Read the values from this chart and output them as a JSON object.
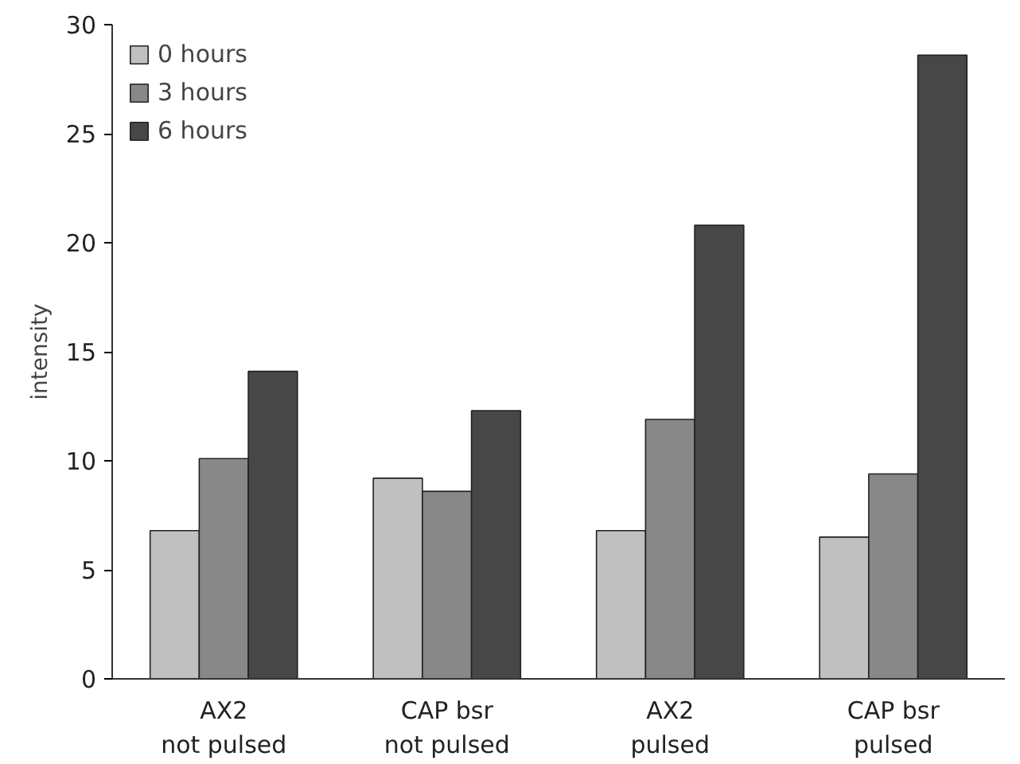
{
  "chart_data": {
    "type": "bar",
    "ylabel": "intensity",
    "categories": [
      "AX2\nnot pulsed",
      "CAP bsr\nnot pulsed",
      "AX2\npulsed",
      "CAP bsr\npulsed"
    ],
    "series": [
      {
        "name": "0 hours",
        "color": "#c0c0c0",
        "values": [
          6.8,
          9.2,
          6.8,
          6.5
        ]
      },
      {
        "name": "3 hours",
        "color": "#888888",
        "values": [
          10.1,
          8.6,
          11.9,
          9.4
        ]
      },
      {
        "name": "6 hours",
        "color": "#474747",
        "values": [
          14.1,
          12.3,
          20.8,
          28.6
        ]
      }
    ],
    "ylim": [
      0,
      30
    ],
    "yticks": [
      0,
      5,
      10,
      15,
      20,
      25,
      30
    ],
    "grid": false,
    "legend": "top left"
  }
}
